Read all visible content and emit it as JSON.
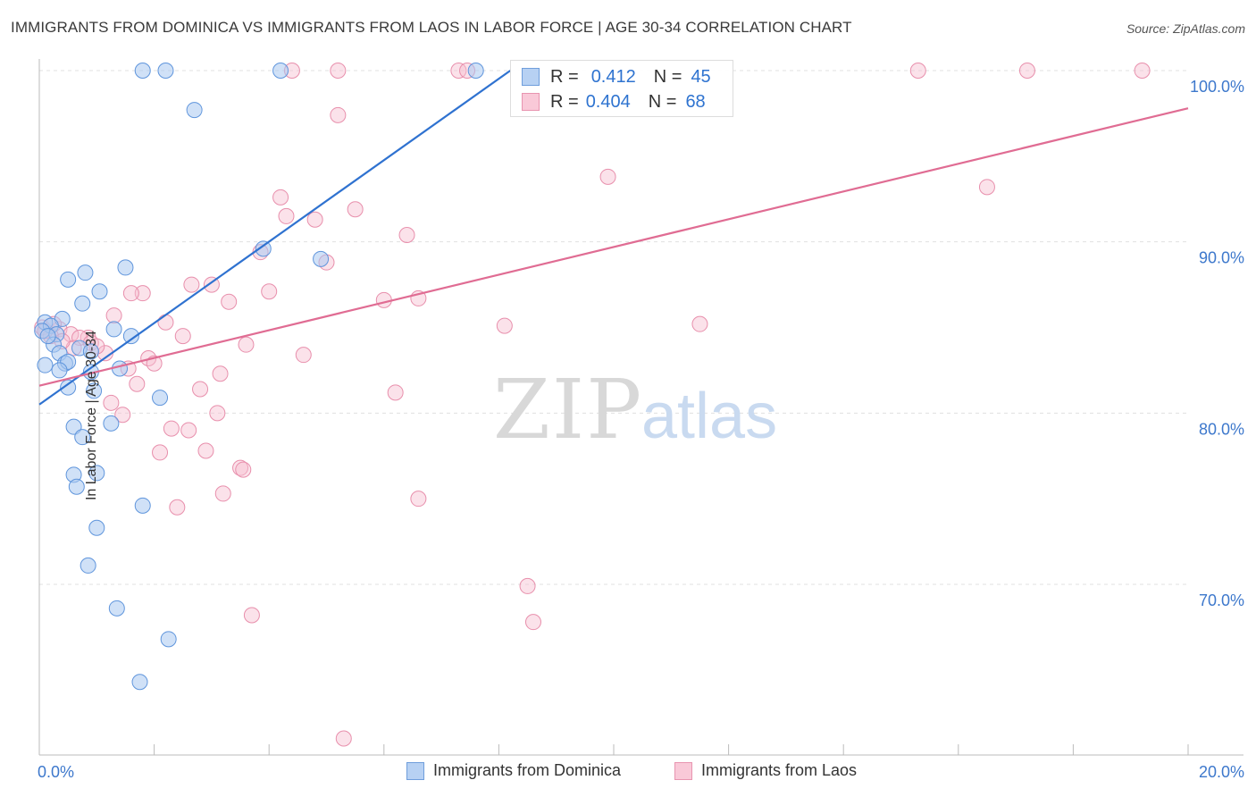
{
  "header": {
    "title": "IMMIGRANTS FROM DOMINICA VS IMMIGRANTS FROM LAOS IN LABOR FORCE | AGE 30-34 CORRELATION CHART",
    "source": "Source: ZipAtlas.com"
  },
  "watermark": {
    "zip": "ZIP",
    "atlas": "atlas"
  },
  "legend": {
    "rows": [
      {
        "r_label": "R =",
        "r_value": "0.412",
        "n_label": "N =",
        "n_value": "45"
      },
      {
        "r_label": "R =",
        "r_value": "0.404",
        "n_label": "N =",
        "n_value": "68"
      }
    ]
  },
  "bottom_legend": {
    "dominica": "Immigrants from Dominica",
    "laos": "Immigrants from Laos"
  },
  "colors": {
    "dominica_fill": "#a9c8f0",
    "dominica_stroke": "#5f95dc",
    "dominica_line": "#2f72d0",
    "laos_fill": "#f7bfd0",
    "laos_stroke": "#e88fac",
    "laos_line": "#e06c93",
    "axis_text": "#3d78cc",
    "grid": "#e0e0e0"
  },
  "chart_data": {
    "type": "scatter",
    "title": "IMMIGRANTS FROM DOMINICA VS IMMIGRANTS FROM LAOS IN LABOR FORCE | AGE 30-34 CORRELATION CHART",
    "xlabel": "",
    "ylabel": "In Labor Force | Age 30-34",
    "xlim": [
      0,
      20
    ],
    "ylim": [
      60.5,
      102.5
    ],
    "x_tick_labels": [
      "0.0%",
      "20.0%"
    ],
    "x_tick_values": [
      0,
      20
    ],
    "y_ticks": [
      {
        "value": 70,
        "label": "70.0%"
      },
      {
        "value": 80,
        "label": "80.0%"
      },
      {
        "value": 90,
        "label": "90.0%"
      },
      {
        "value": 100,
        "label": "100.0%"
      }
    ],
    "series": [
      {
        "name": "Immigrants from Dominica",
        "R": 0.412,
        "N": 45,
        "trend": {
          "x": [
            0.0,
            8.2
          ],
          "y": [
            80.5,
            100.0
          ]
        },
        "points": [
          [
            1.8,
            100
          ],
          [
            2.2,
            100
          ],
          [
            4.2,
            100
          ],
          [
            7.6,
            100
          ],
          [
            2.7,
            97.7
          ],
          [
            3.9,
            89.6
          ],
          [
            4.9,
            89.0
          ],
          [
            1.5,
            88.5
          ],
          [
            0.8,
            88.2
          ],
          [
            0.5,
            87.8
          ],
          [
            1.05,
            87.1
          ],
          [
            0.75,
            86.4
          ],
          [
            0.1,
            85.3
          ],
          [
            0.4,
            85.5
          ],
          [
            0.2,
            85.1
          ],
          [
            0.05,
            84.8
          ],
          [
            0.3,
            84.6
          ],
          [
            1.3,
            84.9
          ],
          [
            1.6,
            84.5
          ],
          [
            0.25,
            84.0
          ],
          [
            0.7,
            83.8
          ],
          [
            0.9,
            83.6
          ],
          [
            0.35,
            83.5
          ],
          [
            0.1,
            82.8
          ],
          [
            0.45,
            82.9
          ],
          [
            0.5,
            83.0
          ],
          [
            0.35,
            82.5
          ],
          [
            0.9,
            82.4
          ],
          [
            1.4,
            82.6
          ],
          [
            0.5,
            81.5
          ],
          [
            0.95,
            81.3
          ],
          [
            2.1,
            80.9
          ],
          [
            1.25,
            79.4
          ],
          [
            0.6,
            79.2
          ],
          [
            0.75,
            78.6
          ],
          [
            0.6,
            76.4
          ],
          [
            1.0,
            76.5
          ],
          [
            0.65,
            75.7
          ],
          [
            1.8,
            74.6
          ],
          [
            1.0,
            73.3
          ],
          [
            0.85,
            71.1
          ],
          [
            1.35,
            68.6
          ],
          [
            2.25,
            66.8
          ],
          [
            1.75,
            64.3
          ],
          [
            0.15,
            84.5
          ]
        ]
      },
      {
        "name": "Immigrants from Laos",
        "R": 0.404,
        "N": 68,
        "trend": {
          "x": [
            0.0,
            20.0
          ],
          "y": [
            81.6,
            97.8
          ]
        },
        "points": [
          [
            4.4,
            100
          ],
          [
            5.2,
            100
          ],
          [
            7.3,
            100
          ],
          [
            7.45,
            100
          ],
          [
            15.3,
            100
          ],
          [
            17.2,
            100
          ],
          [
            19.2,
            100
          ],
          [
            5.2,
            97.4
          ],
          [
            9.9,
            93.8
          ],
          [
            16.5,
            93.2
          ],
          [
            4.2,
            92.6
          ],
          [
            5.5,
            91.9
          ],
          [
            4.3,
            91.5
          ],
          [
            4.8,
            91.3
          ],
          [
            6.4,
            90.4
          ],
          [
            3.85,
            89.4
          ],
          [
            5.0,
            88.8
          ],
          [
            2.65,
            87.5
          ],
          [
            3.0,
            87.5
          ],
          [
            1.8,
            87.0
          ],
          [
            1.6,
            87.0
          ],
          [
            4.0,
            87.1
          ],
          [
            3.3,
            86.5
          ],
          [
            6.0,
            86.6
          ],
          [
            6.6,
            86.7
          ],
          [
            1.3,
            85.7
          ],
          [
            2.2,
            85.3
          ],
          [
            8.1,
            85.1
          ],
          [
            11.5,
            85.2
          ],
          [
            0.05,
            85.0
          ],
          [
            0.35,
            84.9
          ],
          [
            0.55,
            84.6
          ],
          [
            0.2,
            84.5
          ],
          [
            0.85,
            84.4
          ],
          [
            0.7,
            84.4
          ],
          [
            2.5,
            84.5
          ],
          [
            0.9,
            84.1
          ],
          [
            3.6,
            84.0
          ],
          [
            0.6,
            83.8
          ],
          [
            1.15,
            83.5
          ],
          [
            4.6,
            83.4
          ],
          [
            1.9,
            83.2
          ],
          [
            2.0,
            82.9
          ],
          [
            1.55,
            82.6
          ],
          [
            3.15,
            82.3
          ],
          [
            1.7,
            81.7
          ],
          [
            2.8,
            81.4
          ],
          [
            6.2,
            81.2
          ],
          [
            1.25,
            80.6
          ],
          [
            1.45,
            79.9
          ],
          [
            3.1,
            80.0
          ],
          [
            2.3,
            79.1
          ],
          [
            2.6,
            79.0
          ],
          [
            2.1,
            77.7
          ],
          [
            2.9,
            77.8
          ],
          [
            3.5,
            76.8
          ],
          [
            3.55,
            76.7
          ],
          [
            3.2,
            75.3
          ],
          [
            6.6,
            75.0
          ],
          [
            2.4,
            74.5
          ],
          [
            8.5,
            69.9
          ],
          [
            8.6,
            67.8
          ],
          [
            3.7,
            68.2
          ],
          [
            5.3,
            61.0
          ],
          [
            0.1,
            84.8
          ],
          [
            0.4,
            84.2
          ],
          [
            1.0,
            83.9
          ],
          [
            0.25,
            85.2
          ]
        ]
      }
    ]
  }
}
